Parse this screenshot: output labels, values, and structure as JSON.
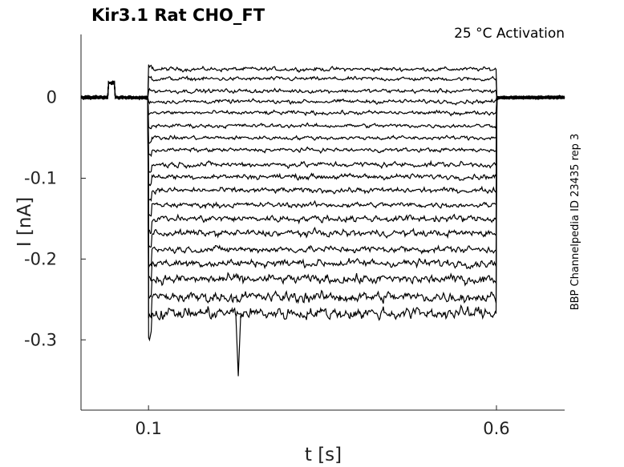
{
  "chart_data": {
    "type": "line",
    "title": "Kir3.1  Rat  CHO_FT",
    "subtitle": "25 °C  Activation",
    "side_label": "BBP Channelpedia ID 23435 rep 3",
    "xlabel": "t [s]",
    "ylabel": "I [nA]",
    "xlim": [
      0.003,
      0.698
    ],
    "ylim": [
      -0.387,
      0.078
    ],
    "x_ticks": [
      0.1,
      0.6
    ],
    "x_tick_labels": [
      "0.1",
      "0.6"
    ],
    "y_ticks": [
      0,
      -0.1,
      -0.2,
      -0.3
    ],
    "y_tick_labels": [
      "0",
      "-0.1",
      "-0.2",
      "-0.3"
    ],
    "grid": false,
    "step_start": 0.1,
    "step_end": 0.6,
    "series": [
      {
        "step_level": 0.035,
        "noise": 0.003
      },
      {
        "step_level": 0.023,
        "noise": 0.003
      },
      {
        "step_level": 0.008,
        "noise": 0.003
      },
      {
        "step_level": -0.005,
        "noise": 0.003
      },
      {
        "step_level": -0.019,
        "noise": 0.003
      },
      {
        "step_level": -0.035,
        "noise": 0.003
      },
      {
        "step_level": -0.05,
        "noise": 0.003
      },
      {
        "step_level": -0.065,
        "noise": 0.003
      },
      {
        "step_level": -0.083,
        "noise": 0.004
      },
      {
        "step_level": -0.098,
        "noise": 0.004
      },
      {
        "step_level": -0.115,
        "noise": 0.004
      },
      {
        "step_level": -0.133,
        "noise": 0.004
      },
      {
        "step_level": -0.15,
        "noise": 0.005
      },
      {
        "step_level": -0.168,
        "noise": 0.005
      },
      {
        "step_level": -0.188,
        "noise": 0.005
      },
      {
        "step_level": -0.205,
        "noise": 0.006
      },
      {
        "step_level": -0.225,
        "noise": 0.007
      },
      {
        "step_level": -0.247,
        "noise": 0.008
      },
      {
        "step_level": -0.267,
        "noise": 0.009
      }
    ]
  }
}
